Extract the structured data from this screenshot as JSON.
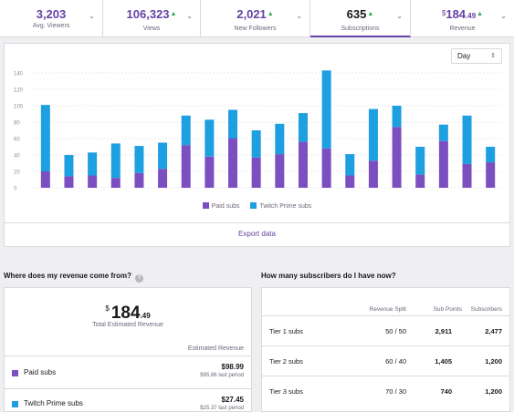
{
  "stats": [
    {
      "value": "3,203",
      "label": "Avg. Viewers",
      "trend": "",
      "active": false
    },
    {
      "value": "106,323",
      "label": "Views",
      "trend": "▲",
      "active": false
    },
    {
      "value": "2,021",
      "label": "New Followers",
      "trend": "▲",
      "active": false
    },
    {
      "value": "635",
      "label": "Subscriptions",
      "trend": "▲",
      "active": true
    },
    {
      "currency": "$",
      "value": "184",
      "decimals": ".49",
      "label": "Revenue",
      "trend": "▲",
      "active": false
    }
  ],
  "period_select": {
    "value": "Day"
  },
  "chart_data": {
    "type": "bar",
    "stacked": true,
    "ylim": [
      0,
      140
    ],
    "yticks": [
      "0",
      "20",
      "40",
      "60",
      "80",
      "100",
      "120",
      "140"
    ],
    "grid": true,
    "legend_placement": "bottom",
    "series": [
      {
        "name": "Paid subs",
        "color": "#7b4fc0",
        "values": [
          20,
          14,
          15,
          12,
          18,
          23,
          52,
          38,
          60,
          37,
          41,
          56,
          48,
          15,
          33,
          74,
          16,
          57,
          29,
          31
        ]
      },
      {
        "name": "Twitch Prime subs",
        "color": "#1e9fe0",
        "values": [
          81,
          26,
          28,
          42,
          33,
          32,
          36,
          45,
          35,
          33,
          37,
          35,
          95,
          26,
          63,
          26,
          34,
          20,
          59,
          19
        ]
      }
    ]
  },
  "export_label": "Export data",
  "revenue_section": {
    "question": "Where does my revenue come from?",
    "info_icon": "?",
    "currency": "$",
    "total_int": "184",
    "total_dec": ".49",
    "total_label": "Total Estimated Revenue",
    "col_header": "Estimated Revenue",
    "rows": [
      {
        "name": "Paid subs",
        "amount": "$98.99",
        "last": "$95.66 last period",
        "color": "#7b4fc0"
      },
      {
        "name": "Twitch Prime subs",
        "amount": "$27.45",
        "last": "$25.37 last period",
        "color": "#1e9fe0"
      }
    ]
  },
  "subscriber_section": {
    "question": "How many subscribers do I have now?",
    "headers": [
      "Revenue Split",
      "Sub Points",
      "Subscribers"
    ],
    "rows": [
      {
        "tier": "Tier 1 subs",
        "split": "50 / 50",
        "points": "2,911",
        "subscribers": "2,477"
      },
      {
        "tier": "Tier 2 subs",
        "split": "60 / 40",
        "points": "1,405",
        "subscribers": "1,200"
      },
      {
        "tier": "Tier 3 subs",
        "split": "70 / 30",
        "points": "740",
        "subscribers": "1,200"
      }
    ]
  }
}
